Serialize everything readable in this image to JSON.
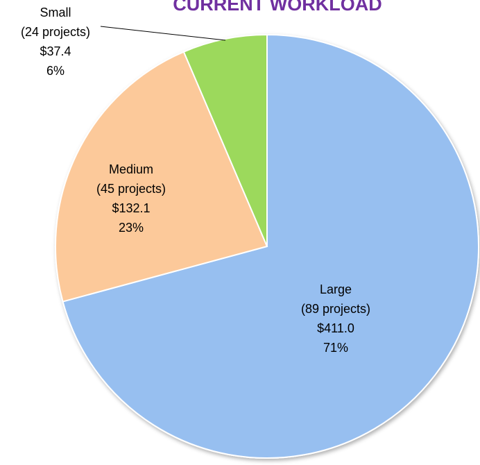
{
  "chart_data": {
    "type": "pie",
    "title": "CURRENT WORKLOAD",
    "categories": [
      "Large",
      "Medium",
      "Small"
    ],
    "project_labels": [
      "(89 projects)",
      "(45 projects)",
      "(24 projects)"
    ],
    "values": [
      411.0,
      132.1,
      37.4
    ],
    "value_labels": [
      "$411.0",
      "$132.1",
      "$37.4"
    ],
    "percent_labels": [
      "71%",
      "23%",
      "6%"
    ],
    "colors": [
      "#97bff0",
      "#fcc99a",
      "#9cd95c"
    ]
  }
}
